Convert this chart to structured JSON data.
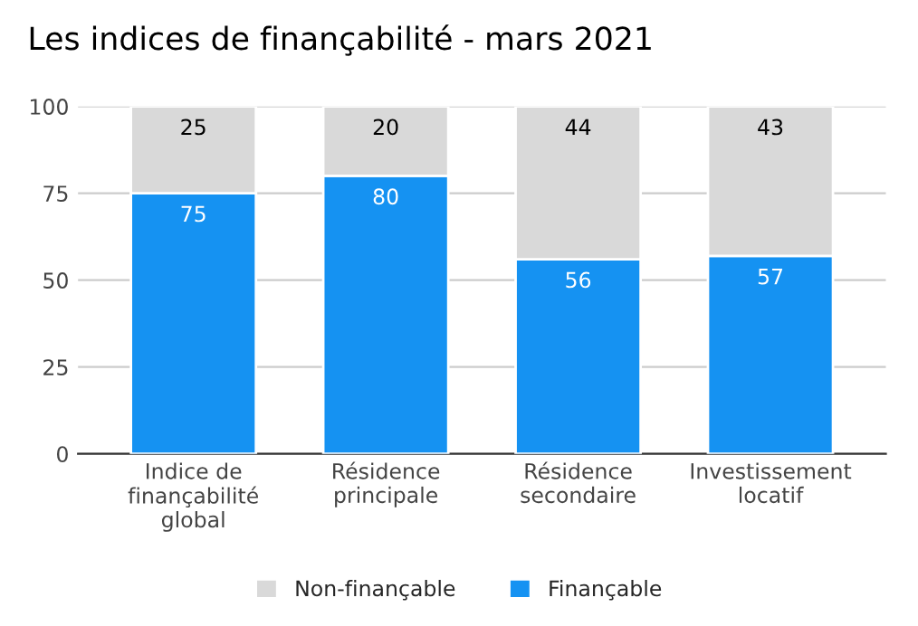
{
  "chart_data": {
    "type": "bar",
    "title": "Les indices de finançabilité - mars 2021",
    "categories": [
      "Indice de\nfinançabilité\nglobal",
      "Résidence\nprincipale",
      "Résidence\nsecondaire",
      "Investissement\nlocatif"
    ],
    "stacked": true,
    "series": [
      {
        "name": "Finançable",
        "color": "#1592f2",
        "values": [
          75,
          80,
          56,
          57
        ]
      },
      {
        "name": "Non-finançable",
        "color": "#d9d9d9",
        "values": [
          25,
          20,
          44,
          43
        ]
      }
    ],
    "ylim": [
      0,
      100
    ],
    "yticks": [
      0,
      25,
      50,
      75,
      100
    ],
    "grid": "y",
    "legend": "bottom",
    "data_labels": true
  }
}
